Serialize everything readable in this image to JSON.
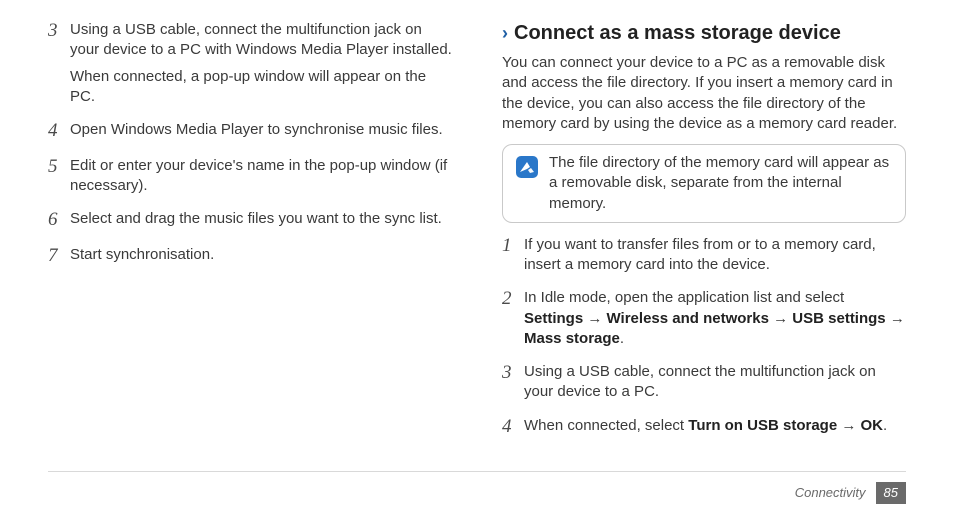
{
  "left": {
    "steps": [
      {
        "num": "3",
        "paras": [
          "Using a USB cable, connect the multifunction jack on your device to a PC with Windows Media Player installed.",
          "When connected, a pop-up window will appear on the PC."
        ]
      },
      {
        "num": "4",
        "paras": [
          "Open Windows Media Player to synchronise music files."
        ]
      },
      {
        "num": "5",
        "paras": [
          "Edit or enter your device's name in the pop-up window (if necessary)."
        ]
      },
      {
        "num": "6",
        "paras": [
          "Select and drag the music files you want to the sync list."
        ]
      },
      {
        "num": "7",
        "paras": [
          "Start synchronisation."
        ]
      }
    ]
  },
  "right": {
    "heading": "Connect as a mass storage device",
    "intro": "You can connect your device to a PC as a removable disk and access the file directory. If you insert a memory card in the device, you can also access the file directory of the memory card by using the device as a memory card reader.",
    "note": "The file directory of the memory card will appear as a removable disk, separate from the internal memory.",
    "steps": [
      {
        "num": "1",
        "html": "If you want to transfer files from or to a memory card, insert a memory card into the device."
      },
      {
        "num": "2",
        "html": "In Idle mode, open the application list and select <b>Settings</b> → <b>Wireless and networks</b> → <b>USB settings</b> → <b>Mass storage</b>."
      },
      {
        "num": "3",
        "html": "Using a USB cable, connect the multifunction jack on your device to a PC."
      },
      {
        "num": "4",
        "html": "When connected, select <b>Turn on USB storage</b> → <b>OK</b>."
      }
    ]
  },
  "footer": {
    "section": "Connectivity",
    "page": "85"
  },
  "colors": {
    "accent": "#1f5fa5",
    "noteIconBg": "#2a77c9",
    "noteIconFg": "#ffffff",
    "text": "#3a3a3a",
    "divider": "#d9d9d9",
    "pageBg": "#6a6a6a"
  }
}
